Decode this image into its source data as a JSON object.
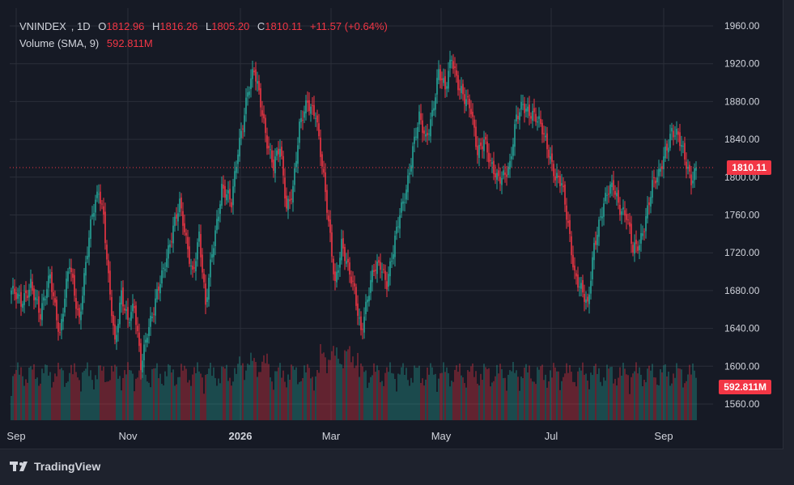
{
  "legend": {
    "symbol": "VNINDEX",
    "interval": "1D",
    "open_label": "O",
    "open": "1812.96",
    "high_label": "H",
    "high": "1816.26",
    "low_label": "L",
    "low": "1805.20",
    "close_label": "C",
    "close": "1810.11",
    "change": "+11.57 (+0.64%)",
    "volume_label": "Volume (SMA, 9)",
    "volume_value": "592.811M"
  },
  "price_tag": "1810.11",
  "volume_tag": "592.811M",
  "brand": {
    "name": "TradingView",
    "logo_icon": "tradingview-logo-icon"
  },
  "colors": {
    "up": "#26a69a",
    "down": "#f23645",
    "background": "#161a25",
    "grid": "#2a2e39",
    "text": "#d1d4dc"
  },
  "chart_data": {
    "type": "candlestick",
    "y_ticks": [
      "1960.00",
      "1920.00",
      "1880.00",
      "1840.00",
      "1800.00",
      "1760.00",
      "1720.00",
      "1680.00",
      "1640.00",
      "1600.00",
      "1560.00"
    ],
    "x_ticks": [
      "Sep",
      "Nov",
      "2026",
      "Mar",
      "May",
      "Jul",
      "Sep"
    ],
    "ylim": [
      1540,
      1975
    ],
    "last_price": 1810.11,
    "last_volume": "592.811M",
    "anchors": [
      [
        0,
        1680
      ],
      [
        6,
        1665
      ],
      [
        12,
        1690
      ],
      [
        18,
        1650
      ],
      [
        24,
        1700
      ],
      [
        30,
        1630
      ],
      [
        36,
        1710
      ],
      [
        42,
        1650
      ],
      [
        50,
        1760
      ],
      [
        54,
        1790
      ],
      [
        57,
        1760
      ],
      [
        60,
        1690
      ],
      [
        64,
        1620
      ],
      [
        68,
        1680
      ],
      [
        72,
        1650
      ],
      [
        76,
        1660
      ],
      [
        80,
        1600
      ],
      [
        84,
        1640
      ],
      [
        88,
        1660
      ],
      [
        94,
        1700
      ],
      [
        100,
        1750
      ],
      [
        104,
        1770
      ],
      [
        108,
        1730
      ],
      [
        112,
        1700
      ],
      [
        116,
        1740
      ],
      [
        120,
        1660
      ],
      [
        124,
        1720
      ],
      [
        130,
        1790
      ],
      [
        136,
        1770
      ],
      [
        140,
        1830
      ],
      [
        146,
        1890
      ],
      [
        150,
        1910
      ],
      [
        154,
        1880
      ],
      [
        158,
        1840
      ],
      [
        162,
        1810
      ],
      [
        166,
        1830
      ],
      [
        170,
        1770
      ],
      [
        174,
        1790
      ],
      [
        178,
        1850
      ],
      [
        183,
        1880
      ],
      [
        188,
        1870
      ],
      [
        192,
        1810
      ],
      [
        196,
        1750
      ],
      [
        200,
        1690
      ],
      [
        204,
        1730
      ],
      [
        208,
        1700
      ],
      [
        212,
        1680
      ],
      [
        216,
        1640
      ],
      [
        220,
        1670
      ],
      [
        224,
        1700
      ],
      [
        228,
        1710
      ],
      [
        232,
        1690
      ],
      [
        236,
        1720
      ],
      [
        240,
        1760
      ],
      [
        244,
        1790
      ],
      [
        248,
        1830
      ],
      [
        252,
        1860
      ],
      [
        256,
        1840
      ],
      [
        260,
        1870
      ],
      [
        264,
        1910
      ],
      [
        268,
        1890
      ],
      [
        272,
        1930
      ],
      [
        276,
        1900
      ],
      [
        280,
        1880
      ],
      [
        284,
        1870
      ],
      [
        288,
        1830
      ],
      [
        292,
        1840
      ],
      [
        296,
        1810
      ],
      [
        300,
        1800
      ],
      [
        304,
        1805
      ],
      [
        308,
        1810
      ],
      [
        312,
        1860
      ],
      [
        316,
        1880
      ],
      [
        320,
        1870
      ],
      [
        324,
        1860
      ],
      [
        328,
        1850
      ],
      [
        332,
        1830
      ],
      [
        336,
        1800
      ],
      [
        340,
        1790
      ],
      [
        344,
        1750
      ],
      [
        348,
        1700
      ],
      [
        352,
        1680
      ],
      [
        356,
        1660
      ],
      [
        360,
        1730
      ],
      [
        364,
        1760
      ],
      [
        368,
        1780
      ],
      [
        372,
        1790
      ],
      [
        376,
        1770
      ],
      [
        380,
        1760
      ],
      [
        384,
        1720
      ],
      [
        388,
        1730
      ],
      [
        392,
        1760
      ],
      [
        396,
        1790
      ],
      [
        400,
        1800
      ],
      [
        404,
        1830
      ],
      [
        408,
        1850
      ],
      [
        412,
        1840
      ],
      [
        416,
        1820
      ],
      [
        420,
        1800
      ],
      [
        423,
        1810
      ]
    ],
    "volume_range": [
      0,
      1100
    ]
  }
}
